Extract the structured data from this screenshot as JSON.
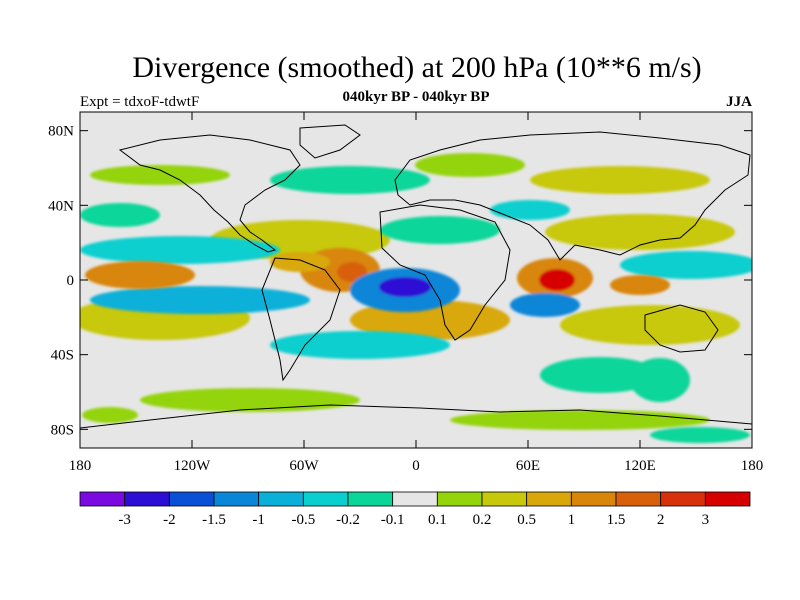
{
  "title": "Divergence (smoothed) at 200 hPa (10**6 m/s)",
  "subtitle": "040kyr BP - 040kyr BP",
  "experiment_label": "Expt = tdxoF-tdwtF",
  "season_label": "JJA",
  "axes": {
    "lat_ticks": [
      "80N",
      "40N",
      "0",
      "40S",
      "80S"
    ],
    "lon_ticks": [
      "180",
      "120W",
      "60W",
      "0",
      "60E",
      "120E",
      "180"
    ]
  },
  "colorbar": {
    "colors": [
      "#7a0ae0",
      "#2d0ed4",
      "#0a50d6",
      "#0a86d8",
      "#0ab0d8",
      "#0acfcf",
      "#0ad69a",
      "#e6e6e6",
      "#94d40a",
      "#c8c80a",
      "#d8a80a",
      "#d8860a",
      "#d8600a",
      "#d8300a",
      "#d60000"
    ],
    "tick_labels": [
      "-3",
      "-2",
      "-1.5",
      "-1",
      "-0.5",
      "-0.2",
      "-0.1",
      "0.1",
      "0.2",
      "0.5",
      "1",
      "1.5",
      "2",
      "3"
    ]
  },
  "color_legend": {
    "strong_convergence": "#2d0ed4",
    "convergence": "#0a86d8",
    "weak_convergence": "#0ad69a",
    "neutral": "#e6e6e6",
    "weak_divergence": "#94d40a",
    "divergence": "#d8860a",
    "strong_divergence": "#d8300a"
  }
}
